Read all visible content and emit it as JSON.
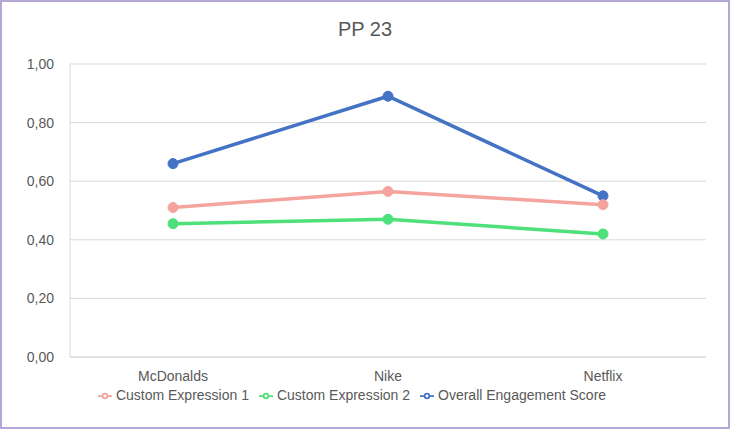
{
  "chart_data": {
    "type": "line",
    "title": "PP 23",
    "categories": [
      "McDonalds",
      "Nike",
      "Netflix"
    ],
    "series": [
      {
        "name": "Overall Engagement Score",
        "color": "#4472c4",
        "values": [
          0.66,
          0.89,
          0.55
        ],
        "marker": "circle"
      },
      {
        "name": "Custom Expression 1",
        "color": "#f4a49c",
        "values": [
          0.51,
          0.565,
          0.52
        ],
        "marker": "circle"
      },
      {
        "name": "Custom Expression 2",
        "color": "#4ee07a",
        "values": [
          0.455,
          0.47,
          0.42
        ],
        "marker": "circle"
      }
    ],
    "ylim": [
      0,
      1
    ],
    "yticks": [
      {
        "value": 0,
        "label": "0,00"
      },
      {
        "value": 0.2,
        "label": "0,20"
      },
      {
        "value": 0.4,
        "label": "0,40"
      },
      {
        "value": 0.6,
        "label": "0,60"
      },
      {
        "value": 0.8,
        "label": "0,80"
      },
      {
        "value": 1,
        "label": "1,00"
      }
    ],
    "grid": true,
    "legend": "bottom"
  }
}
